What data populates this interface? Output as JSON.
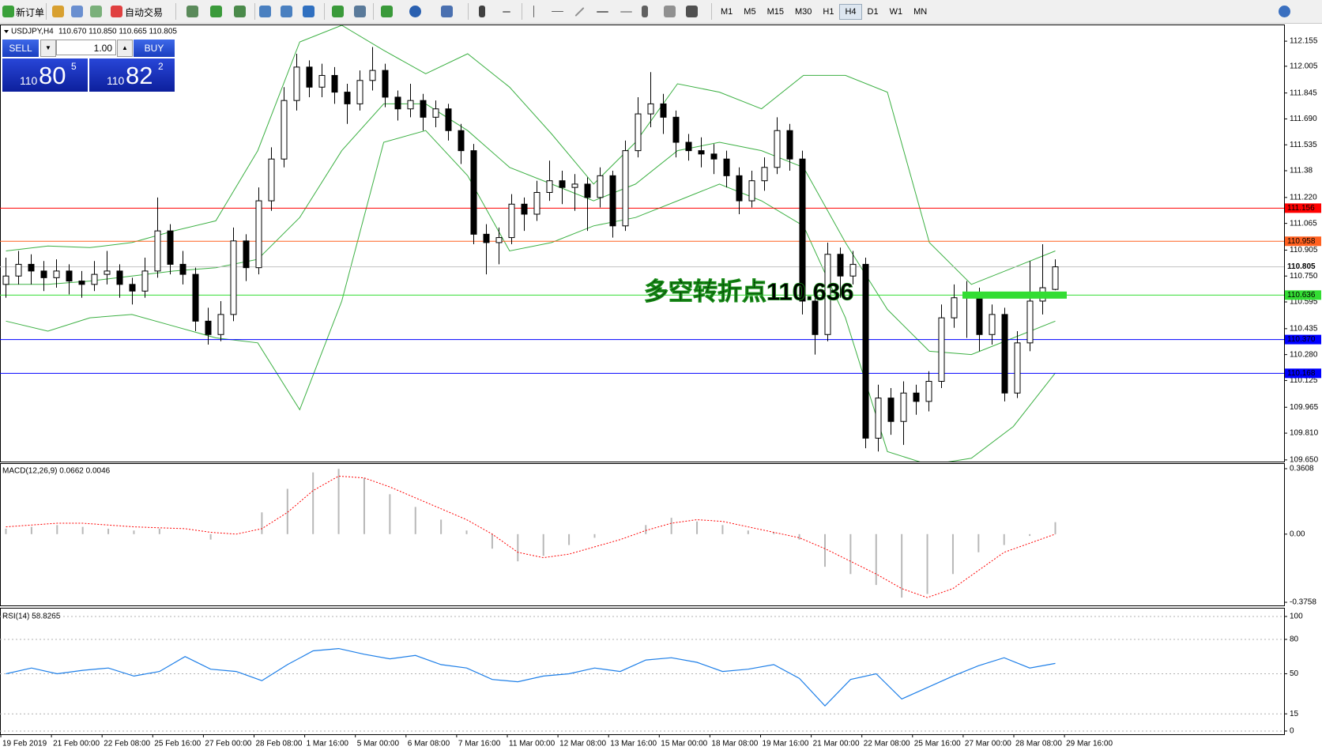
{
  "toolbar": {
    "new_order": "新订单",
    "auto_trading": "自动交易",
    "timeframes": [
      "M1",
      "M5",
      "M15",
      "M30",
      "H1",
      "H4",
      "D1",
      "W1",
      "MN"
    ],
    "active_timeframe": "H4"
  },
  "trade_panel": {
    "sell": "SELL",
    "lots": "1.00",
    "buy": "BUY",
    "bid_big": "110",
    "bid_main": "80",
    "bid_pip": "5",
    "ask_big": "110",
    "ask_main": "82",
    "ask_pip": "2"
  },
  "x_labels": [
    "19 Feb 2019",
    "21 Feb 00:00",
    "22 Feb 08:00",
    "25 Feb 16:00",
    "27 Feb 00:00",
    "28 Feb 08:00",
    "1 Mar 16:00",
    "5 Mar 00:00",
    "6 Mar 08:00",
    "7 Mar 16:00",
    "11 Mar 00:00",
    "12 Mar 08:00",
    "13 Mar 16:00",
    "15 Mar 00:00",
    "18 Mar 08:00",
    "19 Mar 16:00",
    "21 Mar 00:00",
    "22 Mar 08:00",
    "25 Mar 16:00",
    "27 Mar 00:00",
    "28 Mar 08:00",
    "29 Mar 16:00"
  ],
  "chart_data": [
    {
      "type": "candlestick",
      "title": "USDJPY,H4",
      "quote": "110.670 110.850 110.665 110.805",
      "up_color": "#ffffff",
      "down_color": "#000000",
      "candles": [
        [
          110.7,
          110.86,
          110.62,
          110.75
        ],
        [
          110.75,
          110.9,
          110.7,
          110.82
        ],
        [
          110.82,
          110.88,
          110.7,
          110.78
        ],
        [
          110.78,
          110.84,
          110.66,
          110.74
        ],
        [
          110.74,
          110.85,
          110.68,
          110.78
        ],
        [
          110.78,
          110.82,
          110.64,
          110.72
        ],
        [
          110.72,
          110.78,
          110.62,
          110.7
        ],
        [
          110.7,
          110.84,
          110.66,
          110.76
        ],
        [
          110.76,
          110.9,
          110.7,
          110.78
        ],
        [
          110.78,
          110.82,
          110.62,
          110.7
        ],
        [
          110.7,
          110.74,
          110.58,
          110.66
        ],
        [
          110.66,
          110.86,
          110.62,
          110.78
        ],
        [
          110.78,
          111.22,
          110.74,
          111.02
        ],
        [
          111.02,
          111.06,
          110.76,
          110.82
        ],
        [
          110.82,
          110.9,
          110.7,
          110.76
        ],
        [
          110.76,
          110.8,
          110.42,
          110.48
        ],
        [
          110.48,
          110.56,
          110.34,
          110.4
        ],
        [
          110.4,
          110.6,
          110.36,
          110.52
        ],
        [
          110.52,
          111.04,
          110.48,
          110.96
        ],
        [
          110.96,
          111.0,
          110.72,
          110.8
        ],
        [
          110.8,
          111.28,
          110.76,
          111.2
        ],
        [
          111.2,
          111.52,
          111.14,
          111.45
        ],
        [
          111.45,
          111.88,
          111.4,
          111.8
        ],
        [
          111.8,
          112.08,
          111.74,
          112.0
        ],
        [
          112.0,
          112.04,
          111.82,
          111.88
        ],
        [
          111.88,
          112.02,
          111.82,
          111.95
        ],
        [
          111.95,
          112.0,
          111.78,
          111.85
        ],
        [
          111.85,
          111.9,
          111.66,
          111.78
        ],
        [
          111.78,
          111.98,
          111.74,
          111.92
        ],
        [
          111.92,
          112.12,
          111.86,
          111.98
        ],
        [
          111.98,
          112.02,
          111.76,
          111.82
        ],
        [
          111.82,
          111.86,
          111.68,
          111.75
        ],
        [
          111.75,
          111.9,
          111.7,
          111.8
        ],
        [
          111.8,
          111.84,
          111.62,
          111.7
        ],
        [
          111.7,
          111.8,
          111.64,
          111.75
        ],
        [
          111.75,
          111.78,
          111.56,
          111.62
        ],
        [
          111.62,
          111.66,
          111.42,
          111.5
        ],
        [
          111.5,
          111.54,
          110.94,
          111.0
        ],
        [
          111.0,
          111.06,
          110.76,
          110.95
        ],
        [
          110.95,
          111.04,
          110.82,
          110.98
        ],
        [
          110.98,
          111.24,
          110.94,
          111.18
        ],
        [
          111.18,
          111.22,
          111.02,
          111.12
        ],
        [
          111.12,
          111.32,
          111.08,
          111.25
        ],
        [
          111.25,
          111.44,
          111.2,
          111.32
        ],
        [
          111.32,
          111.38,
          111.18,
          111.28
        ],
        [
          111.28,
          111.36,
          111.14,
          111.3
        ],
        [
          111.3,
          111.34,
          111.02,
          111.22
        ],
        [
          111.22,
          111.4,
          111.16,
          111.35
        ],
        [
          111.35,
          111.38,
          110.98,
          111.05
        ],
        [
          111.05,
          111.56,
          111.02,
          111.5
        ],
        [
          111.5,
          111.82,
          111.46,
          111.72
        ],
        [
          111.72,
          111.97,
          111.64,
          111.78
        ],
        [
          111.78,
          111.84,
          111.6,
          111.7
        ],
        [
          111.7,
          111.74,
          111.46,
          111.55
        ],
        [
          111.55,
          111.6,
          111.44,
          111.5
        ],
        [
          111.5,
          111.58,
          111.4,
          111.48
        ],
        [
          111.48,
          111.54,
          111.36,
          111.45
        ],
        [
          111.45,
          111.5,
          111.28,
          111.35
        ],
        [
          111.35,
          111.4,
          111.12,
          111.2
        ],
        [
          111.2,
          111.38,
          111.16,
          111.32
        ],
        [
          111.32,
          111.46,
          111.26,
          111.4
        ],
        [
          111.4,
          111.7,
          111.36,
          111.62
        ],
        [
          111.62,
          111.66,
          111.38,
          111.45
        ],
        [
          111.45,
          111.5,
          110.52,
          110.6
        ],
        [
          110.6,
          110.66,
          110.28,
          110.4
        ],
        [
          110.4,
          110.95,
          110.36,
          110.88
        ],
        [
          110.88,
          110.92,
          110.62,
          110.75
        ],
        [
          110.75,
          110.9,
          110.7,
          110.82
        ],
        [
          110.82,
          110.86,
          109.72,
          109.78
        ],
        [
          109.78,
          110.1,
          109.7,
          110.02
        ],
        [
          110.02,
          110.08,
          109.8,
          109.88
        ],
        [
          109.88,
          110.12,
          109.74,
          110.05
        ],
        [
          110.05,
          110.1,
          109.92,
          110.0
        ],
        [
          110.0,
          110.18,
          109.94,
          110.12
        ],
        [
          110.12,
          110.58,
          110.08,
          110.5
        ],
        [
          110.5,
          110.7,
          110.44,
          110.62
        ],
        [
          110.62,
          110.72,
          110.38,
          110.65
        ],
        [
          110.65,
          110.68,
          110.3,
          110.4
        ],
        [
          110.4,
          110.58,
          110.34,
          110.52
        ],
        [
          110.52,
          110.56,
          110.0,
          110.05
        ],
        [
          110.05,
          110.42,
          110.02,
          110.35
        ],
        [
          110.35,
          110.84,
          110.3,
          110.6
        ],
        [
          110.6,
          110.94,
          110.52,
          110.68
        ],
        [
          110.67,
          110.85,
          110.665,
          110.805
        ]
      ],
      "bands": {
        "color": "#3cb043",
        "upper": [
          110.9,
          110.93,
          110.92,
          110.95,
          111.02,
          111.08,
          111.5,
          112.15,
          112.25,
          112.1,
          111.96,
          112.08,
          111.88,
          111.6,
          111.3,
          111.55,
          111.9,
          111.85,
          111.75,
          111.95,
          111.95,
          111.85,
          110.95,
          110.7,
          110.8,
          110.9
        ],
        "middle": [
          110.7,
          110.7,
          110.72,
          110.75,
          110.78,
          110.8,
          110.85,
          111.1,
          111.5,
          111.78,
          111.78,
          111.62,
          111.4,
          111.3,
          111.2,
          111.3,
          111.5,
          111.55,
          111.5,
          111.4,
          110.95,
          110.55,
          110.3,
          110.28,
          110.38,
          110.48
        ],
        "lower": [
          110.48,
          110.42,
          110.5,
          110.52,
          110.45,
          110.38,
          110.35,
          109.95,
          110.6,
          111.55,
          111.62,
          111.35,
          110.9,
          110.95,
          111.05,
          111.1,
          111.2,
          111.3,
          111.2,
          111.05,
          110.5,
          109.7,
          109.62,
          109.66,
          109.85,
          110.17
        ]
      },
      "hlines": [
        {
          "value": 111.156,
          "color": "#ff0000"
        },
        {
          "value": 110.958,
          "color": "#ff6020"
        },
        {
          "value": 110.805,
          "color": "#c0c0c0"
        },
        {
          "value": 110.636,
          "color": "#33dd33"
        },
        {
          "value": 110.37,
          "label": "110.370",
          "color": "#0000ff"
        },
        {
          "value": 110.168,
          "color": "#0000ff"
        }
      ],
      "annotation": {
        "text": "多空转折点110.636",
        "color": "#22cc22"
      },
      "ylim": [
        109.64,
        112.25
      ],
      "yticks": [
        112.155,
        112.005,
        111.845,
        {
          "value": 111.69,
          "label": "111.690"
        },
        111.535,
        111.38,
        {
          "value": 111.22,
          "label": "111.220"
        },
        111.065,
        110.905,
        {
          "value": 110.75,
          "label": "110.750"
        },
        110.595,
        110.435,
        {
          "value": 110.28,
          "label": "110.280"
        },
        110.125,
        109.965,
        {
          "value": 109.81,
          "label": "109.810"
        },
        {
          "value": 109.65,
          "label": "109.650"
        }
      ]
    },
    {
      "type": "macd",
      "title": "MACD(12,26,9) 0.0662 0.0046",
      "hist_color": "#b8b8b8",
      "signal_color": "#ff0000",
      "histogram": [
        0.03,
        0.04,
        0.05,
        0.04,
        0.03,
        0.02,
        0.03,
        0.0,
        -0.03,
        0.0,
        0.12,
        0.25,
        0.34,
        0.36,
        0.31,
        0.22,
        0.15,
        0.08,
        0.02,
        -0.08,
        -0.15,
        -0.12,
        -0.06,
        -0.02,
        0.0,
        0.05,
        0.09,
        0.07,
        0.05,
        0.02,
        0.01,
        -0.03,
        -0.18,
        -0.22,
        -0.28,
        -0.35,
        -0.33,
        -0.22,
        -0.1,
        -0.06,
        -0.01,
        0.066
      ],
      "signal": [
        0.04,
        0.05,
        0.06,
        0.06,
        0.05,
        0.04,
        0.035,
        0.03,
        0.01,
        0.0,
        0.03,
        0.12,
        0.24,
        0.32,
        0.31,
        0.26,
        0.2,
        0.14,
        0.08,
        0.0,
        -0.1,
        -0.13,
        -0.11,
        -0.07,
        -0.03,
        0.02,
        0.06,
        0.08,
        0.07,
        0.04,
        0.01,
        -0.02,
        -0.08,
        -0.15,
        -0.22,
        -0.3,
        -0.35,
        -0.3,
        -0.2,
        -0.1,
        -0.05,
        0.0
      ],
      "ylim": [
        -0.393,
        0.387
      ],
      "yticks": [
        0.3608,
        {
          "value": 0,
          "label": "0.00"
        },
        -0.3758
      ]
    },
    {
      "type": "line",
      "title": "RSI(14) 58.8265",
      "color": "#1e7fe8",
      "values": [
        50,
        55,
        50,
        53,
        55,
        48,
        52,
        65,
        54,
        52,
        44,
        58,
        70,
        72,
        67,
        63,
        66,
        58,
        55,
        45,
        43,
        48,
        50,
        55,
        52,
        62,
        64,
        60,
        52,
        54,
        58,
        46,
        22,
        45,
        50,
        28,
        38,
        48,
        57,
        64,
        55,
        59
      ],
      "ylim": [
        -2.8,
        106.9
      ],
      "yticks": [
        100,
        80,
        50,
        15,
        0
      ],
      "grid": true
    }
  ]
}
